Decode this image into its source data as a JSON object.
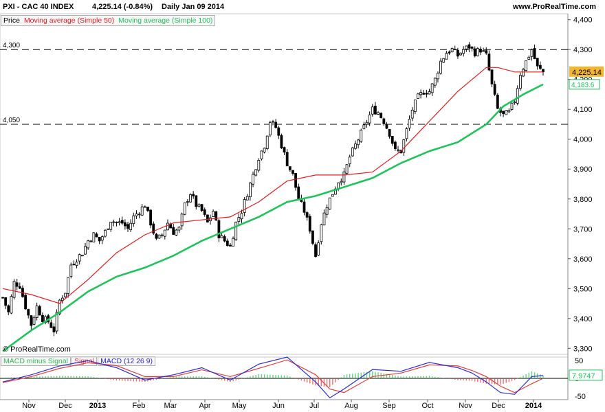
{
  "header": {
    "symbol": "PXI - CAC 40 INDEX",
    "quote": "4,225.14 (-0.84%)",
    "period_date": "Daily  Jan 09 2014",
    "site": "www.ProRealTime.com"
  },
  "legend": {
    "price": "Price",
    "ma50": "Moving average (Simple 50)",
    "ma100": "Moving average (Simple 100)"
  },
  "watermark": "© ProRealTime.com",
  "price_tags": {
    "last": "4,225.14",
    "ma100": "4,183.6"
  },
  "levels": {
    "upper_label": "4,300",
    "lower_label": "4,050"
  },
  "macd_legend": {
    "hist": "MACD minus Signal",
    "signal": "Signal",
    "macd": "MACD (12 26 9)"
  },
  "macd_tag": "7.9747",
  "colors": {
    "ma50": "#e8191b",
    "ma100": "#1ec45a",
    "bull": "#ffffff",
    "bear": "#000000",
    "macd_line": "#2b2bd6",
    "signal_line": "#e83c3c",
    "hist_pos": "#2fbf56",
    "hist_neg": "#e83c3c",
    "last_tag": "#f2b632",
    "ma100_tag": "#1ec45a"
  },
  "chart_data": {
    "type": "candlestick",
    "title": "PXI - CAC 40 INDEX",
    "ylim": [
      3280,
      4420
    ],
    "y_ticks": [
      3300,
      3400,
      3500,
      3600,
      3700,
      3800,
      3900,
      4000,
      4100,
      4200,
      4300,
      4400
    ],
    "y_tick_labels": [
      "3,300",
      "3,400",
      "3,500",
      "3,600",
      "3,700",
      "3,800",
      "3,900",
      "4,000",
      "4,100",
      "4,200",
      "4,300",
      "4,400"
    ],
    "x_labels": [
      "Nov",
      "Dec",
      "2013",
      "Feb",
      "Mar",
      "Apr",
      "May",
      "Jun",
      "Jul",
      "Aug",
      "Sep",
      "Oct",
      "Nov",
      "Dec",
      "2014"
    ],
    "horizontal_levels": [
      4300,
      4050
    ],
    "close_path": [
      [
        0,
        3470
      ],
      [
        2,
        3420
      ],
      [
        4,
        3520
      ],
      [
        6,
        3510
      ],
      [
        8,
        3440
      ],
      [
        10,
        3380
      ],
      [
        12,
        3440
      ],
      [
        14,
        3400
      ],
      [
        16,
        3390
      ],
      [
        18,
        3360
      ],
      [
        20,
        3460
      ],
      [
        22,
        3490
      ],
      [
        24,
        3580
      ],
      [
        26,
        3600
      ],
      [
        28,
        3620
      ],
      [
        30,
        3660
      ],
      [
        32,
        3680
      ],
      [
        34,
        3660
      ],
      [
        36,
        3690
      ],
      [
        38,
        3730
      ],
      [
        40,
        3720
      ],
      [
        42,
        3720
      ],
      [
        44,
        3700
      ],
      [
        46,
        3740
      ],
      [
        48,
        3760
      ],
      [
        50,
        3780
      ],
      [
        52,
        3720
      ],
      [
        54,
        3660
      ],
      [
        56,
        3680
      ],
      [
        58,
        3720
      ],
      [
        60,
        3690
      ],
      [
        62,
        3700
      ],
      [
        64,
        3780
      ],
      [
        66,
        3820
      ],
      [
        68,
        3780
      ],
      [
        70,
        3760
      ],
      [
        72,
        3720
      ],
      [
        74,
        3760
      ],
      [
        76,
        3680
      ],
      [
        78,
        3660
      ],
      [
        80,
        3640
      ],
      [
        82,
        3720
      ],
      [
        84,
        3760
      ],
      [
        86,
        3820
      ],
      [
        88,
        3880
      ],
      [
        90,
        3940
      ],
      [
        92,
        3980
      ],
      [
        94,
        4060
      ],
      [
        96,
        4040
      ],
      [
        98,
        3980
      ],
      [
        100,
        3920
      ],
      [
        102,
        3880
      ],
      [
        104,
        3800
      ],
      [
        106,
        3760
      ],
      [
        108,
        3700
      ],
      [
        110,
        3610
      ],
      [
        112,
        3720
      ],
      [
        114,
        3780
      ],
      [
        116,
        3820
      ],
      [
        118,
        3860
      ],
      [
        120,
        3880
      ],
      [
        122,
        3940
      ],
      [
        124,
        3980
      ],
      [
        126,
        4020
      ],
      [
        128,
        4060
      ],
      [
        130,
        4100
      ],
      [
        132,
        4090
      ],
      [
        134,
        4060
      ],
      [
        136,
        4020
      ],
      [
        138,
        3960
      ],
      [
        140,
        3960
      ],
      [
        142,
        4030
      ],
      [
        144,
        4100
      ],
      [
        146,
        4140
      ],
      [
        148,
        4160
      ],
      [
        150,
        4160
      ],
      [
        152,
        4200
      ],
      [
        154,
        4260
      ],
      [
        156,
        4290
      ],
      [
        158,
        4300
      ],
      [
        160,
        4280
      ],
      [
        162,
        4300
      ],
      [
        164,
        4310
      ],
      [
        166,
        4290
      ],
      [
        168,
        4300
      ],
      [
        170,
        4280
      ],
      [
        172,
        4180
      ],
      [
        174,
        4100
      ],
      [
        176,
        4080
      ],
      [
        178,
        4090
      ],
      [
        180,
        4130
      ],
      [
        182,
        4220
      ],
      [
        184,
        4260
      ],
      [
        186,
        4300
      ],
      [
        188,
        4240
      ],
      [
        190,
        4225
      ]
    ],
    "ma50_path": [
      [
        0,
        3500
      ],
      [
        10,
        3480
      ],
      [
        20,
        3450
      ],
      [
        30,
        3530
      ],
      [
        40,
        3620
      ],
      [
        50,
        3680
      ],
      [
        60,
        3720
      ],
      [
        70,
        3730
      ],
      [
        80,
        3740
      ],
      [
        90,
        3790
      ],
      [
        100,
        3860
      ],
      [
        110,
        3880
      ],
      [
        120,
        3880
      ],
      [
        130,
        3890
      ],
      [
        140,
        3960
      ],
      [
        150,
        4060
      ],
      [
        160,
        4160
      ],
      [
        170,
        4240
      ],
      [
        174,
        4240
      ],
      [
        180,
        4225
      ],
      [
        190,
        4225
      ]
    ],
    "ma100_path": [
      [
        0,
        3290
      ],
      [
        10,
        3360
      ],
      [
        20,
        3420
      ],
      [
        30,
        3490
      ],
      [
        40,
        3540
      ],
      [
        50,
        3570
      ],
      [
        60,
        3610
      ],
      [
        70,
        3660
      ],
      [
        80,
        3700
      ],
      [
        90,
        3740
      ],
      [
        100,
        3790
      ],
      [
        110,
        3810
      ],
      [
        120,
        3840
      ],
      [
        130,
        3870
      ],
      [
        140,
        3920
      ],
      [
        150,
        3960
      ],
      [
        160,
        3990
      ],
      [
        170,
        4050
      ],
      [
        176,
        4110
      ],
      [
        183,
        4150
      ],
      [
        190,
        4183.6
      ]
    ],
    "macd": {
      "ylim": [
        -60,
        60
      ],
      "y_ticks": [
        50,
        0,
        -50
      ],
      "y_tick_labels": [
        "50",
        "0",
        "-50"
      ],
      "macd_path": [
        [
          0,
          -10
        ],
        [
          10,
          10
        ],
        [
          20,
          35
        ],
        [
          30,
          50
        ],
        [
          40,
          30
        ],
        [
          50,
          -5
        ],
        [
          60,
          10
        ],
        [
          70,
          30
        ],
        [
          80,
          -5
        ],
        [
          90,
          40
        ],
        [
          100,
          60
        ],
        [
          110,
          -10
        ],
        [
          115,
          -55
        ],
        [
          120,
          -30
        ],
        [
          130,
          25
        ],
        [
          140,
          20
        ],
        [
          150,
          45
        ],
        [
          160,
          30
        ],
        [
          165,
          15
        ],
        [
          170,
          -10
        ],
        [
          175,
          -40
        ],
        [
          180,
          -45
        ],
        [
          186,
          5
        ],
        [
          190,
          7.97
        ]
      ],
      "signal_path": [
        [
          0,
          -12
        ],
        [
          10,
          5
        ],
        [
          20,
          28
        ],
        [
          30,
          44
        ],
        [
          40,
          36
        ],
        [
          50,
          5
        ],
        [
          60,
          5
        ],
        [
          70,
          24
        ],
        [
          80,
          5
        ],
        [
          90,
          28
        ],
        [
          100,
          52
        ],
        [
          110,
          10
        ],
        [
          115,
          -30
        ],
        [
          120,
          -40
        ],
        [
          130,
          5
        ],
        [
          140,
          15
        ],
        [
          150,
          38
        ],
        [
          160,
          35
        ],
        [
          165,
          22
        ],
        [
          170,
          5
        ],
        [
          175,
          -22
        ],
        [
          180,
          -40
        ],
        [
          186,
          -15
        ],
        [
          190,
          0
        ]
      ]
    }
  }
}
